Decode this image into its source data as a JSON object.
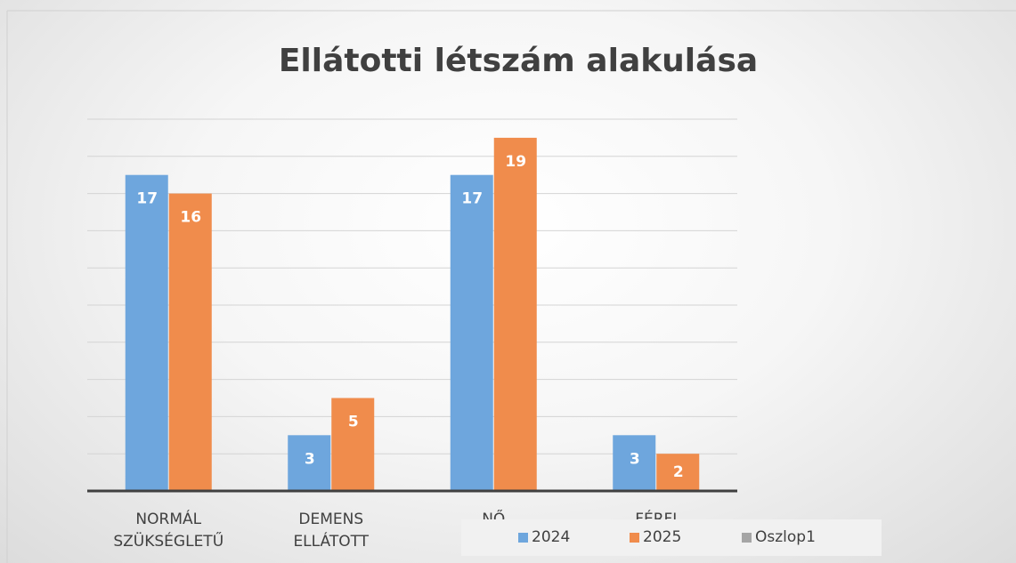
{
  "chart_data": {
    "type": "bar",
    "title": "Ellátotti létszám alakulása",
    "categories": [
      "NORMÁL SZÜKSÉGLETŰ",
      "DEMENS ELLÁTOTT",
      "NŐ",
      "FÉRFI"
    ],
    "series": [
      {
        "name": "2024",
        "color": "#6ea6dd",
        "values": [
          17,
          3,
          17,
          3
        ]
      },
      {
        "name": "2025",
        "color": "#f08c4c",
        "values": [
          16,
          5,
          19,
          2
        ]
      },
      {
        "name": "Oszlop1",
        "color": "#a5a5a5",
        "values": [
          null,
          null,
          null,
          null
        ]
      }
    ],
    "ylim": [
      0,
      20
    ],
    "yticks": [
      0,
      2,
      4,
      6,
      8,
      10,
      12,
      14,
      16,
      18,
      20
    ],
    "ytick_labels": false,
    "grid": true,
    "legend": "bottom",
    "data_labels": true
  }
}
